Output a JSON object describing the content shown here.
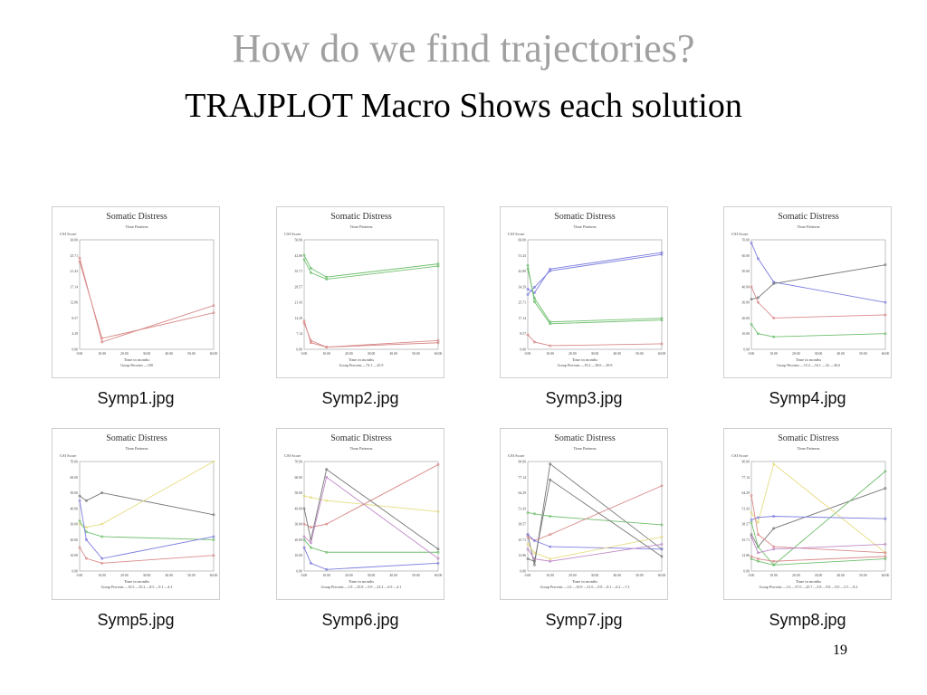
{
  "slide": {
    "title": "How do we find trajectories?",
    "subtitle": "TRAJPLOT Macro Shows each solution",
    "page_number": "19"
  },
  "colors": {
    "red": "#d98a8a",
    "green": "#6fbf6f",
    "blue": "#7d7de0",
    "gray": "#777777",
    "yellow": "#e6dc82",
    "purple": "#c08ac8"
  },
  "panels": [
    {
      "caption": "Symp1.jpg",
      "chart_data": {
        "type": "line",
        "title": "Somatic Distress",
        "subtitle": "Time Patterns",
        "ylabel": "CSI Score",
        "xlabel": "Time in months",
        "ylim": [
          0,
          30
        ],
        "legend_prefix": "Group Percents",
        "x": [
          0,
          10,
          60
        ],
        "series": [
          {
            "color": "#d98a8a",
            "values": [
              25,
              2,
              12
            ],
            "legend": "100"
          },
          {
            "color": "#d98a8a",
            "values": [
              24,
              3,
              10
            ],
            "legend": ""
          }
        ]
      }
    },
    {
      "caption": "Symp2.jpg",
      "chart_data": {
        "type": "line",
        "title": "Somatic Distress",
        "subtitle": "Time Patterns",
        "ylabel": "CSI Score",
        "xlabel": "Time in months",
        "ylim": [
          0,
          50
        ],
        "legend_prefix": "Group Percents",
        "x": [
          0,
          3,
          10,
          60
        ],
        "series": [
          {
            "color": "#6fbf6f",
            "values": [
              41,
              35,
              32,
              38
            ],
            "legend": "74.1"
          },
          {
            "color": "#6fbf6f",
            "values": [
              43,
              37,
              33,
              39
            ],
            "legend": ""
          },
          {
            "color": "#d98a8a",
            "values": [
              12,
              4,
              1,
              3
            ],
            "legend": "25.9"
          },
          {
            "color": "#d98a8a",
            "values": [
              13,
              3,
              1,
              4
            ],
            "legend": ""
          }
        ]
      }
    },
    {
      "caption": "Symp3.jpg",
      "chart_data": {
        "type": "line",
        "title": "Somatic Distress",
        "subtitle": "Time Patterns",
        "ylabel": "CSI Score",
        "xlabel": "Time in months",
        "ylim": [
          0,
          60
        ],
        "legend_prefix": "Group Percents",
        "x": [
          0,
          3,
          10,
          60
        ],
        "series": [
          {
            "color": "#7d7de0",
            "values": [
              30,
              34,
              43,
              52
            ],
            "legend": "19.2"
          },
          {
            "color": "#7d7de0",
            "values": [
              33,
              31,
              44,
              53
            ],
            "legend": ""
          },
          {
            "color": "#6fbf6f",
            "values": [
              44,
              28,
              15,
              17
            ],
            "legend": "38.6"
          },
          {
            "color": "#6fbf6f",
            "values": [
              46,
              26,
              14,
              16
            ],
            "legend": ""
          },
          {
            "color": "#d98a8a",
            "values": [
              8,
              4,
              2,
              3
            ],
            "legend": "39.9"
          }
        ]
      }
    },
    {
      "caption": "Symp4.jpg",
      "chart_data": {
        "type": "line",
        "title": "Somatic Distress",
        "subtitle": "Time Patterns",
        "ylabel": "CSI Score",
        "xlabel": "Time in months",
        "ylim": [
          0,
          70
        ],
        "legend_prefix": "Group Percents",
        "x": [
          0,
          3,
          10,
          60
        ],
        "series": [
          {
            "color": "#7d7de0",
            "values": [
              68,
              58,
              43,
              30
            ],
            "legend": "15.2"
          },
          {
            "color": "#777777",
            "values": [
              32,
              33,
              42,
              54
            ],
            "legend": "16.1"
          },
          {
            "color": "#d98a8a",
            "values": [
              40,
              30,
              20,
              22
            ],
            "legend": "32"
          },
          {
            "color": "#6fbf6f",
            "values": [
              16,
              10,
              8,
              10
            ],
            "legend": "36.6"
          }
        ]
      }
    },
    {
      "caption": "Symp5.jpg",
      "chart_data": {
        "type": "line",
        "title": "Somatic Distress",
        "subtitle": "Time Patterns",
        "ylabel": "CSI Score",
        "xlabel": "Time in months",
        "ylim": [
          0,
          70
        ],
        "legend_prefix": "Group Percents",
        "x": [
          0,
          3,
          10,
          60
        ],
        "series": [
          {
            "color": "#777777",
            "values": [
              48,
              45,
              50,
              36
            ],
            "legend": "10.5"
          },
          {
            "color": "#e6dc82",
            "values": [
              30,
              28,
              30,
              70
            ],
            "legend": "35.2"
          },
          {
            "color": "#6fbf6f",
            "values": [
              32,
              25,
              22,
              20
            ],
            "legend": "8.5"
          },
          {
            "color": "#7d7de0",
            "values": [
              45,
              20,
              8,
              22
            ],
            "legend": "9.1"
          },
          {
            "color": "#d98a8a",
            "values": [
              15,
              8,
              5,
              10
            ],
            "legend": "4.3"
          }
        ]
      }
    },
    {
      "caption": "Symp6.jpg",
      "chart_data": {
        "type": "line",
        "title": "Somatic Distress",
        "subtitle": "Time Patterns",
        "ylabel": "CSI Score",
        "xlabel": "Time in months",
        "ylim": [
          0,
          70
        ],
        "legend_prefix": "Group Percents",
        "x": [
          0,
          3,
          10,
          60
        ],
        "series": [
          {
            "color": "#e6dc82",
            "values": [
              48,
              47,
              45,
              38
            ],
            "legend": "1.8"
          },
          {
            "color": "#d98a8a",
            "values": [
              30,
              28,
              30,
              68
            ],
            "legend": "35.8"
          },
          {
            "color": "#777777",
            "values": [
              40,
              20,
              65,
              14
            ],
            "legend": "9.9"
          },
          {
            "color": "#6fbf6f",
            "values": [
              20,
              15,
              12,
              12
            ],
            "legend": "23.2"
          },
          {
            "color": "#7d7de0",
            "values": [
              15,
              5,
              1,
              5
            ],
            "legend": "6.9"
          },
          {
            "color": "#c08ac8",
            "values": [
              22,
              18,
              60,
              8
            ],
            "legend": "4.1"
          }
        ]
      }
    },
    {
      "caption": "Symp7.jpg",
      "chart_data": {
        "type": "line",
        "title": "Somatic Distress",
        "subtitle": "Time Patterns",
        "ylabel": "CSI Score",
        "xlabel": "Time in months",
        "ylim": [
          0,
          90
        ],
        "legend_prefix": "Group Percents",
        "x": [
          0,
          3,
          10,
          60
        ],
        "series": [
          {
            "color": "#777777",
            "values": [
              30,
              5,
              88,
              18
            ],
            "legend": "1.6"
          },
          {
            "color": "#6fbf6f",
            "values": [
              48,
              47,
              45,
              38
            ],
            "legend": "16.9"
          },
          {
            "color": "#d98a8a",
            "values": [
              28,
              25,
              30,
              70
            ],
            "legend": "31.6"
          },
          {
            "color": "#7d7de0",
            "values": [
              30,
              25,
              20,
              18
            ],
            "legend": "9.8"
          },
          {
            "color": "#e6dc82",
            "values": [
              22,
              15,
              10,
              28
            ],
            "legend": "8.1"
          },
          {
            "color": "#c08ac8",
            "values": [
              18,
              10,
              8,
              22
            ],
            "legend": "6.2"
          },
          {
            "color": "#777777",
            "values": [
              10,
              8,
              75,
              12
            ],
            "legend": "7.3"
          }
        ]
      }
    },
    {
      "caption": "Symp8.jpg",
      "chart_data": {
        "type": "line",
        "title": "Somatic Distress",
        "subtitle": "Time Patterns",
        "ylabel": "CSI Score",
        "xlabel": "Time in months",
        "ylim": [
          0,
          90
        ],
        "legend_prefix": "Group Percents",
        "x": [
          0,
          3,
          10,
          60
        ],
        "series": [
          {
            "color": "#777777",
            "values": [
              30,
              20,
              35,
              68
            ],
            "legend": "1.6"
          },
          {
            "color": "#6fbf6f",
            "values": [
              40,
              20,
              5,
              82
            ],
            "legend": "57.0"
          },
          {
            "color": "#e6dc82",
            "values": [
              48,
              40,
              88,
              15
            ],
            "legend": "25.7"
          },
          {
            "color": "#7d7de0",
            "values": [
              42,
              44,
              45,
              43
            ],
            "legend": "5.8"
          },
          {
            "color": "#d98a8a",
            "values": [
              62,
              30,
              20,
              15
            ],
            "legend": "9.8"
          },
          {
            "color": "#c08ac8",
            "values": [
              28,
              15,
              18,
              22
            ],
            "legend": "9.0"
          },
          {
            "color": "#d98a8a",
            "values": [
              12,
              10,
              8,
              12
            ],
            "legend": "5.5"
          },
          {
            "color": "#6fbf6f",
            "values": [
              10,
              8,
              5,
              10
            ],
            "legend": "8.2"
          }
        ]
      }
    }
  ]
}
